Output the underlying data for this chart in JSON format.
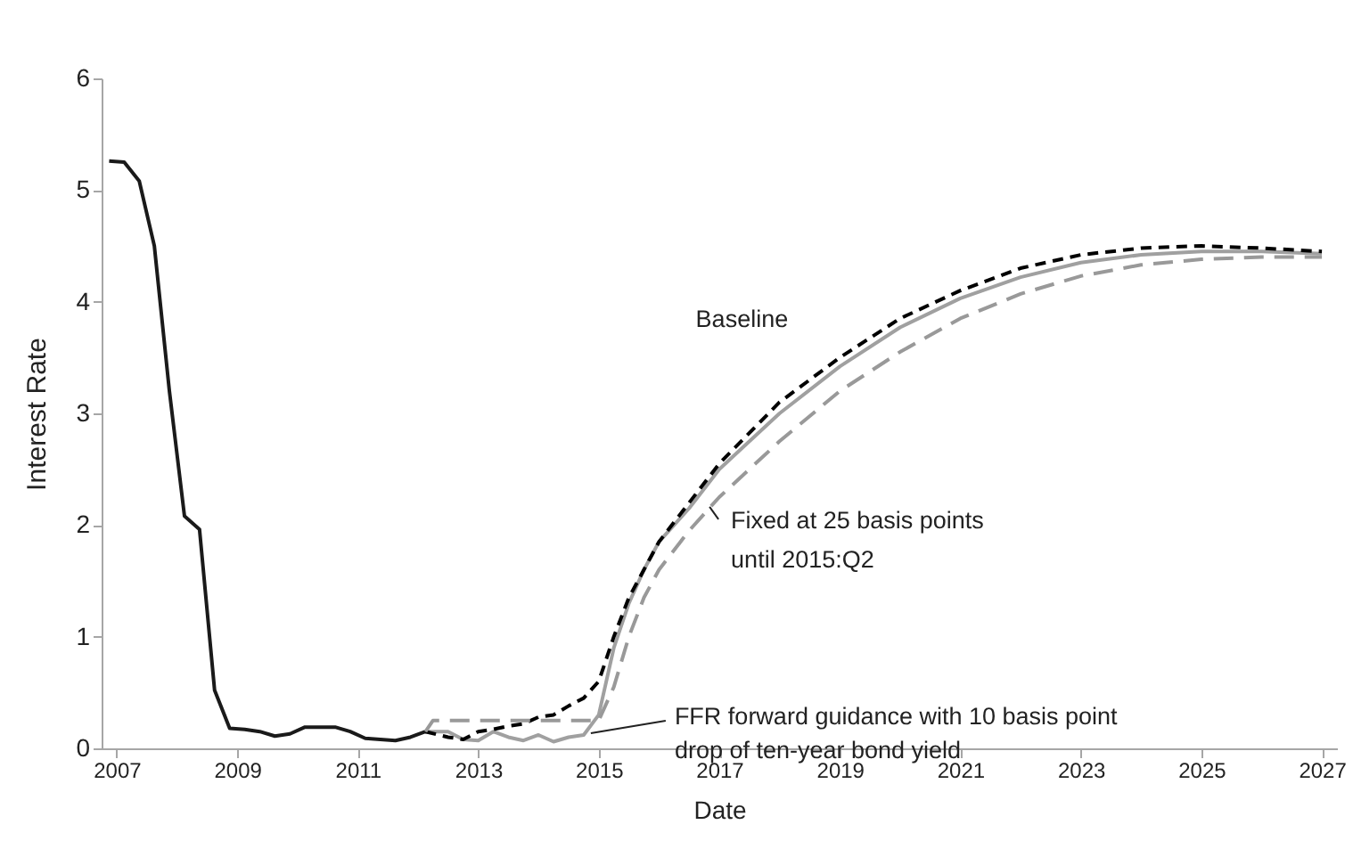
{
  "chart_data": {
    "type": "line",
    "xlabel": "Date",
    "ylabel": "Interest Rate",
    "xlim": [
      2006.75,
      2027.25
    ],
    "xticks": [
      2007,
      2009,
      2011,
      2013,
      2015,
      2017,
      2019,
      2021,
      2023,
      2025,
      2027
    ],
    "ylim": [
      0,
      6
    ],
    "yticks": [
      0,
      1,
      2,
      3,
      4,
      5,
      6
    ],
    "grid": false,
    "legend": false,
    "marker": "none",
    "series": [
      {
        "color": "#1a1a1a",
        "line_style": "solid",
        "x": [
          2006.875,
          2007.125,
          2007.375,
          2007.625,
          2007.875,
          2008.125,
          2008.375,
          2008.625,
          2008.875,
          2009.125,
          2009.375,
          2009.625,
          2009.875,
          2010.125,
          2010.375,
          2010.625,
          2010.875,
          2011.125,
          2011.375,
          2011.625,
          2011.875,
          2012.125
        ],
        "values": [
          5.26,
          5.25,
          5.08,
          4.5,
          3.2,
          2.08,
          1.96,
          0.52,
          0.18,
          0.17,
          0.15,
          0.11,
          0.13,
          0.19,
          0.19,
          0.19,
          0.15,
          0.09,
          0.08,
          0.07,
          0.1,
          0.15
        ]
      },
      {
        "color": "#000000",
        "line_style": "dashed",
        "x": [
          2012.125,
          2012.5,
          2012.75,
          2013,
          2013.25,
          2013.5,
          2013.75,
          2014,
          2014.25,
          2014.5,
          2014.75,
          2015,
          2015.25,
          2015.5,
          2015.75,
          2016,
          2016.5,
          2017,
          2018,
          2019,
          2020,
          2021,
          2022,
          2023,
          2024,
          2025,
          2026,
          2027
        ],
        "values": [
          0.15,
          0.1,
          0.08,
          0.15,
          0.17,
          0.2,
          0.22,
          0.28,
          0.3,
          0.38,
          0.45,
          0.6,
          1.0,
          1.35,
          1.6,
          1.85,
          2.2,
          2.55,
          3.1,
          3.5,
          3.85,
          4.1,
          4.3,
          4.42,
          4.48,
          4.5,
          4.48,
          4.45
        ]
      },
      {
        "color": "#999999",
        "line_style": "dashed",
        "x": [
          2012.125,
          2012.25,
          2015,
          2015.25,
          2015.5,
          2015.75,
          2016,
          2016.5,
          2017,
          2018,
          2019,
          2020,
          2021,
          2022,
          2023,
          2024,
          2025,
          2026,
          2027
        ],
        "values": [
          0.15,
          0.25,
          0.25,
          0.55,
          1.0,
          1.35,
          1.6,
          1.95,
          2.25,
          2.75,
          3.2,
          3.55,
          3.85,
          4.07,
          4.23,
          4.33,
          4.38,
          4.4,
          4.4
        ]
      },
      {
        "color": "#a0a0a0",
        "line_style": "solid",
        "x": [
          2012.125,
          2012.5,
          2012.75,
          2013,
          2013.25,
          2013.5,
          2013.75,
          2014,
          2014.25,
          2014.5,
          2014.75,
          2015,
          2015.25,
          2015.5,
          2015.75,
          2016,
          2016.5,
          2017,
          2018,
          2019,
          2020,
          2021,
          2022,
          2023,
          2024,
          2025,
          2026,
          2027
        ],
        "values": [
          0.15,
          0.15,
          0.08,
          0.07,
          0.15,
          0.1,
          0.07,
          0.12,
          0.06,
          0.1,
          0.12,
          0.3,
          0.9,
          1.3,
          1.6,
          1.85,
          2.15,
          2.5,
          3.0,
          3.42,
          3.77,
          4.03,
          4.22,
          4.35,
          4.42,
          4.45,
          4.45,
          4.43
        ]
      }
    ],
    "annotations": [
      {
        "text": "Baseline",
        "x": 2018,
        "y": 3.1
      },
      {
        "text": "Fixed at 25 basis points\nuntil 2015:Q2",
        "x": 2016.75,
        "y": 2.1
      },
      {
        "text": "FFR forward guidance with 10 basis point\ndrop of ten-year bond yield",
        "x": 2014.75,
        "y": 0.12
      }
    ]
  }
}
